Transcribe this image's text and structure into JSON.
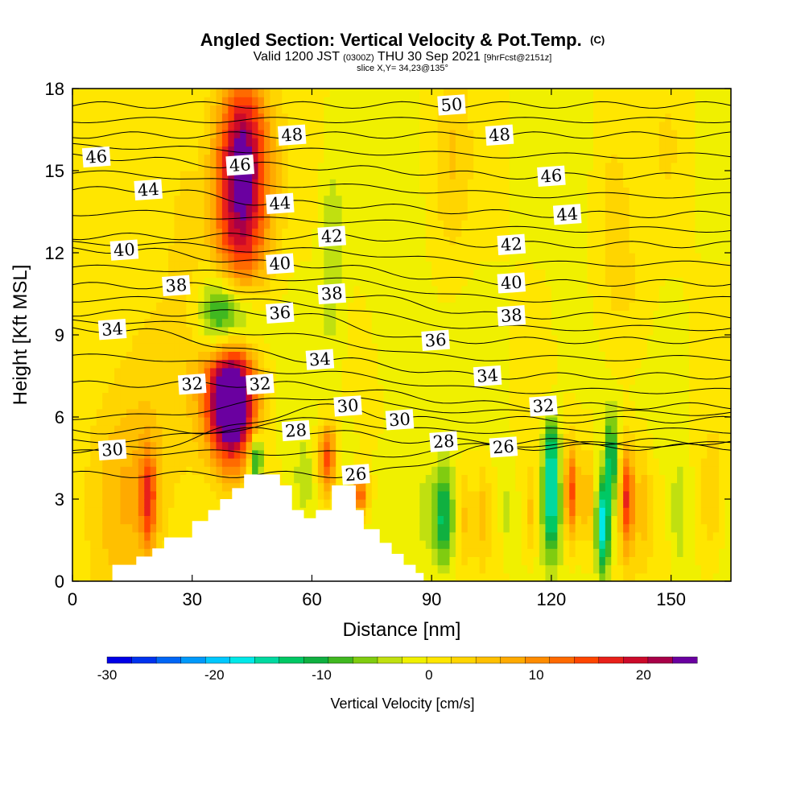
{
  "header": {
    "title": "Angled Section: Vertical Velocity & Pot.Temp.",
    "title_unit": "(C)",
    "valid_prefix": "Valid 1200 JST",
    "valid_zulu": "(0300Z)",
    "valid_date": "THU 30 Sep 2021",
    "forecast": "[9hrFcst@2151z]",
    "slice": "slice X,Y= 34,23@135°"
  },
  "chart_data": {
    "type": "heatmap",
    "xlabel": "Distance [nm]",
    "ylabel": "Height [Kft MSL]",
    "xlim": [
      0,
      165
    ],
    "ylim": [
      0,
      18
    ],
    "x_ticks": [
      "0",
      "30",
      "60",
      "90",
      "120",
      "150"
    ],
    "y_ticks": [
      "0",
      "3",
      "6",
      "9",
      "12",
      "15",
      "18"
    ],
    "colorbar": {
      "label": "Vertical Velocity [cm/s]",
      "tick_labels": [
        "-30",
        "-20",
        "-10",
        "0",
        "10",
        "20"
      ],
      "range": [
        -30,
        25
      ],
      "step": 2.5,
      "colors": [
        "#0000e6",
        "#0033ee",
        "#0066f5",
        "#0099fa",
        "#00c8ff",
        "#00e8e8",
        "#00d9a0",
        "#00c864",
        "#10b040",
        "#40b820",
        "#80cc10",
        "#c0e010",
        "#f0f000",
        "#ffe600",
        "#ffd500",
        "#ffc000",
        "#ffaa00",
        "#ff8c00",
        "#ff6a00",
        "#ff4600",
        "#e8201a",
        "#cc0a2a",
        "#a80048",
        "#6a00a0"
      ]
    },
    "contour_labels": [
      {
        "text": "50",
        "x": 95,
        "y": 17.4
      },
      {
        "text": "48",
        "x": 55,
        "y": 16.3
      },
      {
        "text": "48",
        "x": 107,
        "y": 16.3
      },
      {
        "text": "46",
        "x": 6,
        "y": 15.5
      },
      {
        "text": "46",
        "x": 42,
        "y": 15.2
      },
      {
        "text": "46",
        "x": 120,
        "y": 14.8
      },
      {
        "text": "44",
        "x": 19,
        "y": 14.3
      },
      {
        "text": "44",
        "x": 52,
        "y": 13.8
      },
      {
        "text": "44",
        "x": 124,
        "y": 13.4
      },
      {
        "text": "42",
        "x": 65,
        "y": 12.6
      },
      {
        "text": "42",
        "x": 110,
        "y": 12.3
      },
      {
        "text": "40",
        "x": 13,
        "y": 12.1
      },
      {
        "text": "40",
        "x": 52,
        "y": 11.6
      },
      {
        "text": "40",
        "x": 110,
        "y": 10.9
      },
      {
        "text": "38",
        "x": 26,
        "y": 10.8
      },
      {
        "text": "38",
        "x": 65,
        "y": 10.5
      },
      {
        "text": "38",
        "x": 110,
        "y": 9.7
      },
      {
        "text": "36",
        "x": 52,
        "y": 9.8
      },
      {
        "text": "36",
        "x": 91,
        "y": 8.8
      },
      {
        "text": "34",
        "x": 10,
        "y": 9.2
      },
      {
        "text": "34",
        "x": 62,
        "y": 8.1
      },
      {
        "text": "34",
        "x": 104,
        "y": 7.5
      },
      {
        "text": "32",
        "x": 30,
        "y": 7.2
      },
      {
        "text": "32",
        "x": 47,
        "y": 7.2
      },
      {
        "text": "32",
        "x": 118,
        "y": 6.4
      },
      {
        "text": "30",
        "x": 69,
        "y": 6.4
      },
      {
        "text": "30",
        "x": 82,
        "y": 5.9
      },
      {
        "text": "30",
        "x": 10,
        "y": 4.8
      },
      {
        "text": "28",
        "x": 56,
        "y": 5.5
      },
      {
        "text": "28",
        "x": 93,
        "y": 5.1
      },
      {
        "text": "26",
        "x": 108,
        "y": 4.9
      },
      {
        "text": "26",
        "x": 71,
        "y": 3.9
      }
    ],
    "terrain_kft": [
      [
        0,
        0
      ],
      [
        10,
        0
      ],
      [
        10,
        0.6
      ],
      [
        16,
        0.6
      ],
      [
        16,
        0.9
      ],
      [
        20,
        0.9
      ],
      [
        20,
        1.2
      ],
      [
        23,
        1.2
      ],
      [
        23,
        1.6
      ],
      [
        30,
        1.6
      ],
      [
        30,
        2.2
      ],
      [
        34,
        2.2
      ],
      [
        34,
        2.6
      ],
      [
        37,
        2.6
      ],
      [
        37,
        3.0
      ],
      [
        40,
        3.0
      ],
      [
        40,
        3.4
      ],
      [
        43,
        3.4
      ],
      [
        43,
        3.9
      ],
      [
        52,
        3.9
      ],
      [
        52,
        3.5
      ],
      [
        55,
        3.5
      ],
      [
        55,
        2.6
      ],
      [
        58,
        2.6
      ],
      [
        58,
        2.3
      ],
      [
        61,
        2.3
      ],
      [
        61,
        2.6
      ],
      [
        65,
        2.6
      ],
      [
        65,
        3.5
      ],
      [
        71,
        3.5
      ],
      [
        71,
        2.6
      ],
      [
        73,
        2.6
      ],
      [
        73,
        1.9
      ],
      [
        77,
        1.9
      ],
      [
        77,
        1.4
      ],
      [
        80,
        1.4
      ],
      [
        80,
        1.0
      ],
      [
        83,
        1.0
      ],
      [
        83,
        0.6
      ],
      [
        86,
        0.6
      ],
      [
        86,
        0.3
      ],
      [
        88,
        0.3
      ],
      [
        88,
        0
      ],
      [
        165,
        0
      ]
    ],
    "w_field_cm_s": [
      {
        "x": 42,
        "y": 14.0,
        "sx": 5,
        "sy": 3.0,
        "amp": 24
      },
      {
        "x": 43,
        "y": 16.0,
        "sx": 4,
        "sy": 1.6,
        "amp": 8
      },
      {
        "x": 40,
        "y": 6.3,
        "sx": 4,
        "sy": 1.6,
        "amp": 26
      },
      {
        "x": 39,
        "y": 7.3,
        "sx": 5,
        "sy": 1.5,
        "amp": 12
      },
      {
        "x": 40,
        "y": 9.5,
        "sx": 5,
        "sy": 1.1,
        "amp": -19
      },
      {
        "x": 36,
        "y": 10.0,
        "sx": 3,
        "sy": 1.1,
        "amp": -6
      },
      {
        "x": 46,
        "y": 4.5,
        "sx": 1.2,
        "sy": 0.6,
        "amp": -16
      },
      {
        "x": 64,
        "y": 4.5,
        "sx": 1.6,
        "sy": 0.9,
        "amp": 17
      },
      {
        "x": 72,
        "y": 3.2,
        "sx": 1.5,
        "sy": 0.6,
        "amp": 16
      },
      {
        "x": 19,
        "y": 3.0,
        "sx": 1.5,
        "sy": 1.3,
        "amp": 14
      },
      {
        "x": 13,
        "y": 3.2,
        "sx": 6,
        "sy": 2.5,
        "amp": 5
      },
      {
        "x": 18,
        "y": 6.5,
        "sx": 10,
        "sy": 4.0,
        "amp": 4
      },
      {
        "x": 28,
        "y": 14.0,
        "sx": 3,
        "sy": 3.0,
        "amp": 3
      },
      {
        "x": 58,
        "y": 3.5,
        "sx": 2,
        "sy": 1.3,
        "amp": -4
      },
      {
        "x": 65,
        "y": 12.0,
        "sx": 2,
        "sy": 2.5,
        "amp": -5
      },
      {
        "x": 68,
        "y": 4.4,
        "sx": 2,
        "sy": 0.8,
        "amp": -3
      },
      {
        "x": 93,
        "y": 2.3,
        "sx": 2,
        "sy": 1.3,
        "amp": -14
      },
      {
        "x": 88,
        "y": 2.6,
        "sx": 1.2,
        "sy": 1.0,
        "amp": -4
      },
      {
        "x": 98,
        "y": 2.5,
        "sx": 1.5,
        "sy": 1.2,
        "amp": 5
      },
      {
        "x": 103,
        "y": 2.5,
        "sx": 1.2,
        "sy": 1.2,
        "amp": 6
      },
      {
        "x": 109,
        "y": 2.5,
        "sx": 0.9,
        "sy": 1.0,
        "amp": -4
      },
      {
        "x": 115,
        "y": 2.5,
        "sx": 1.2,
        "sy": 1.2,
        "amp": 6
      },
      {
        "x": 120,
        "y": 3.0,
        "sx": 1.5,
        "sy": 1.4,
        "amp": -18
      },
      {
        "x": 120,
        "y": 5.0,
        "sx": 1.3,
        "sy": 0.8,
        "amp": -9
      },
      {
        "x": 125,
        "y": 3.2,
        "sx": 1.2,
        "sy": 1.3,
        "amp": 16
      },
      {
        "x": 129,
        "y": 3.0,
        "sx": 1.2,
        "sy": 1.3,
        "amp": 8
      },
      {
        "x": 133,
        "y": 2.0,
        "sx": 1.2,
        "sy": 1.2,
        "amp": -20
      },
      {
        "x": 135,
        "y": 4.5,
        "sx": 1.0,
        "sy": 1.1,
        "amp": -15
      },
      {
        "x": 139,
        "y": 3.0,
        "sx": 1.2,
        "sy": 1.4,
        "amp": 18
      },
      {
        "x": 143,
        "y": 3.0,
        "sx": 1.5,
        "sy": 1.5,
        "amp": 6
      },
      {
        "x": 152,
        "y": 2.5,
        "sx": 1.5,
        "sy": 1.5,
        "amp": -5
      },
      {
        "x": 160,
        "y": 3.0,
        "sx": 2.0,
        "sy": 1.8,
        "amp": 5
      },
      {
        "x": 95,
        "y": 15.5,
        "sx": 3,
        "sy": 3.0,
        "amp": 4
      },
      {
        "x": 135,
        "y": 13.0,
        "sx": 3,
        "sy": 2.5,
        "amp": 3
      },
      {
        "x": 150,
        "y": 16.0,
        "sx": 3,
        "sy": 2.0,
        "amp": 2
      },
      {
        "x": 80,
        "y": 9.0,
        "sx": 5,
        "sy": 3.0,
        "amp": -2
      },
      {
        "x": 125,
        "y": 8.5,
        "sx": 5,
        "sy": 2.0,
        "amp": -2
      },
      {
        "x": 140,
        "y": 10.0,
        "sx": 4,
        "sy": 2.0,
        "amp": 3
      }
    ],
    "w_background_cm_s": 2.5
  }
}
